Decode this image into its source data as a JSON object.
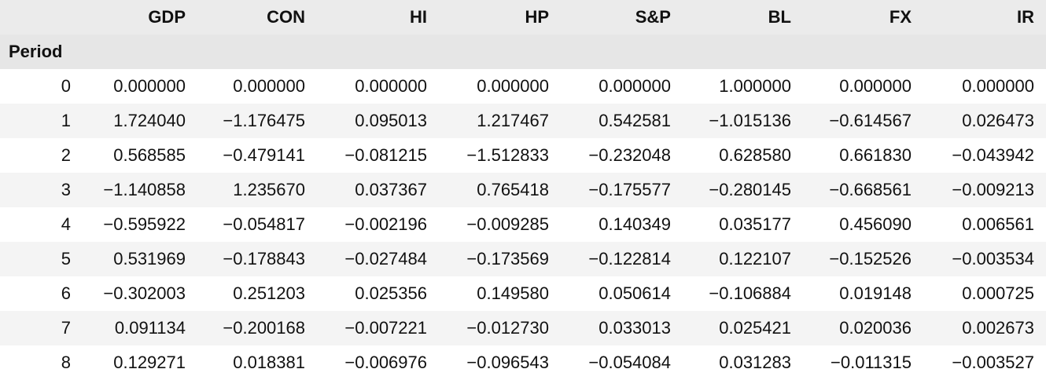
{
  "table": {
    "columns": [
      "",
      "GDP",
      "CON",
      "HI",
      "HP",
      "S&P",
      "BL",
      "FX",
      "IR"
    ],
    "index_name": "Period",
    "rows": [
      {
        "index": "0",
        "values": [
          "0.000000",
          "0.000000",
          "0.000000",
          "0.000000",
          "0.000000",
          "1.000000",
          "0.000000",
          "0.000000"
        ]
      },
      {
        "index": "1",
        "values": [
          "1.724040",
          "−1.176475",
          "0.095013",
          "1.217467",
          "0.542581",
          "−1.015136",
          "−0.614567",
          "0.026473"
        ]
      },
      {
        "index": "2",
        "values": [
          "0.568585",
          "−0.479141",
          "−0.081215",
          "−1.512833",
          "−0.232048",
          "0.628580",
          "0.661830",
          "−0.043942"
        ]
      },
      {
        "index": "3",
        "values": [
          "−1.140858",
          "1.235670",
          "0.037367",
          "0.765418",
          "−0.175577",
          "−0.280145",
          "−0.668561",
          "−0.009213"
        ]
      },
      {
        "index": "4",
        "values": [
          "−0.595922",
          "−0.054817",
          "−0.002196",
          "−0.009285",
          "0.140349",
          "0.035177",
          "0.456090",
          "0.006561"
        ]
      },
      {
        "index": "5",
        "values": [
          "0.531969",
          "−0.178843",
          "−0.027484",
          "−0.173569",
          "−0.122814",
          "0.122107",
          "−0.152526",
          "−0.003534"
        ]
      },
      {
        "index": "6",
        "values": [
          "−0.302003",
          "0.251203",
          "0.025356",
          "0.149580",
          "0.050614",
          "−0.106884",
          "0.019148",
          "0.000725"
        ]
      },
      {
        "index": "7",
        "values": [
          "0.091134",
          "−0.200168",
          "−0.007221",
          "−0.012730",
          "0.033013",
          "0.025421",
          "0.020036",
          "0.002673"
        ]
      },
      {
        "index": "8",
        "values": [
          "0.129271",
          "0.018381",
          "−0.006976",
          "−0.096543",
          "−0.054084",
          "0.031283",
          "−0.011315",
          "−0.003527"
        ]
      }
    ]
  },
  "colors": {
    "header_bg": "#ebebeb",
    "index_header_bg": "#e6e6e6",
    "row_even_bg": "#ffffff",
    "row_odd_bg": "#f4f4f4",
    "text": "#111111"
  }
}
